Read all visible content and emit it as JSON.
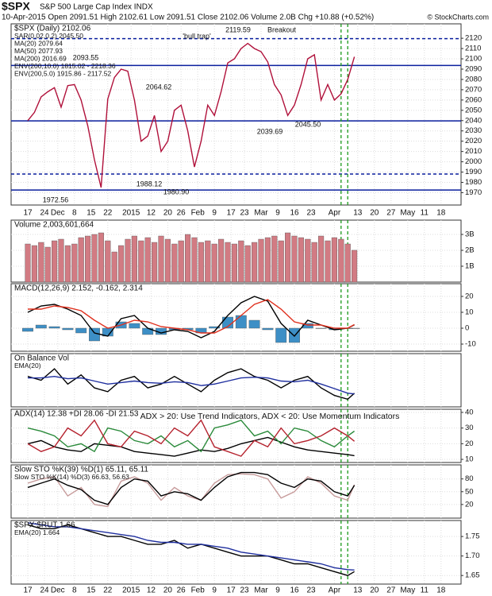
{
  "chart_data": {
    "type": "multi-panel",
    "title": "$SPX",
    "subtitle": "S&P 500 Large Cap Index INDX",
    "quote": "10-Apr-2015   Open 2091.51  High 2102.61  Low 2091.51  Close 2102.06  Volume 2.0B  Chg +10.88 (+0.52%)",
    "credit": "© StockCharts.com",
    "xlim": [
      -5,
      130
    ],
    "xticks": [
      {
        "value": 0,
        "label": "17"
      },
      {
        "value": 5,
        "label": "24"
      },
      {
        "value": 9,
        "label": "Dec"
      },
      {
        "value": 14,
        "label": "8"
      },
      {
        "value": 19,
        "label": "15"
      },
      {
        "value": 24,
        "label": "22"
      },
      {
        "value": 31,
        "label": "2015"
      },
      {
        "value": 37,
        "label": "12"
      },
      {
        "value": 42,
        "label": "20"
      },
      {
        "value": 46,
        "label": "26"
      },
      {
        "value": 51,
        "label": "Feb"
      },
      {
        "value": 56,
        "label": "9"
      },
      {
        "value": 61,
        "label": "17"
      },
      {
        "value": 65,
        "label": "23"
      },
      {
        "value": 70,
        "label": "Mar"
      },
      {
        "value": 75,
        "label": "9"
      },
      {
        "value": 80,
        "label": "16"
      },
      {
        "value": 85,
        "label": "23"
      },
      {
        "value": 92,
        "label": "Apr"
      },
      {
        "value": 99,
        "label": "13"
      },
      {
        "value": 104,
        "label": "20"
      },
      {
        "value": 109,
        "label": "27"
      },
      {
        "value": 114,
        "label": "May"
      },
      {
        "value": 119,
        "label": "11"
      },
      {
        "value": 124,
        "label": "18"
      }
    ],
    "signal_x": [
      94,
      96
    ],
    "signal_color": "#1a9a1a",
    "panels": [
      {
        "type": "line",
        "ylim": [
          1958,
          2134
        ],
        "yticks": [
          1970,
          1980,
          1990,
          2000,
          2010,
          2020,
          2030,
          2040,
          2050,
          2060,
          2070,
          2080,
          2090,
          2100,
          2110,
          2120
        ],
        "labels": [
          "$SPX (Daily) 2102.06",
          "SAR(0.02,0.2) 2045.50",
          "MA(20) 2079.64",
          "MA(50) 2077.93",
          "MA(200) 2016.69",
          "ENV(200,10.0) 1815.02 - 2218.36",
          "ENV(200,5.0) 1915.86 - 2117.52"
        ],
        "annotations": [
          "2119.59",
          "'bull trap'",
          "2093.55",
          "2064.62",
          "1972.56",
          "1988.12",
          "1980.90",
          "2039.69",
          "2045.50",
          "Breakout"
        ],
        "levels": [
          {
            "value": 2119.59,
            "dashed": true
          },
          {
            "value": 2093.55,
            "dashed": false
          },
          {
            "value": 2039.69,
            "dashed": false
          },
          {
            "value": 1972.56,
            "dashed": false
          },
          {
            "value": 1988.12,
            "dashed": true
          }
        ],
        "x": [
          0,
          2,
          4,
          6,
          8,
          10,
          12,
          14,
          16,
          18,
          20,
          22,
          24,
          26,
          28,
          30,
          32,
          34,
          36,
          38,
          40,
          42,
          44,
          46,
          48,
          50,
          52,
          54,
          56,
          58,
          60,
          62,
          64,
          66,
          68,
          70,
          72,
          74,
          76,
          78,
          80,
          82,
          84,
          86,
          88,
          90,
          92,
          94,
          96,
          98
        ],
        "series": [
          {
            "color": "#b0103a",
            "values": [
              2040,
              2048,
              2063,
              2068,
              2072,
              2053,
              2074,
              2075,
              2060,
              2035,
              2002,
              1975,
              2061,
              2082,
              2090,
              2088,
              2060,
              2020,
              2025,
              2045,
              2010,
              2020,
              2050,
              2055,
              2030,
              1995,
              2020,
              2055,
              2045,
              2068,
              2096,
              2100,
              2110,
              2115,
              2110,
              2107,
              2097,
              2075,
              2065,
              2045,
              2055,
              2075,
              2100,
              2104,
              2060,
              2075,
              2060,
              2066,
              2080,
              2102.06
            ]
          }
        ]
      },
      {
        "type": "bar",
        "ylim": [
          0,
          3.9
        ],
        "yticks": [
          {
            "value": 1,
            "label": "1B"
          },
          {
            "value": 2,
            "label": "2B"
          },
          {
            "value": 3,
            "label": "3B"
          }
        ],
        "labels": [
          "Volume 2,003,601,664"
        ],
        "x": [
          0,
          2,
          4,
          6,
          8,
          10,
          12,
          14,
          16,
          18,
          20,
          22,
          24,
          26,
          28,
          30,
          32,
          34,
          36,
          38,
          40,
          42,
          44,
          46,
          48,
          50,
          52,
          54,
          56,
          58,
          60,
          62,
          64,
          66,
          68,
          70,
          72,
          74,
          76,
          78,
          80,
          82,
          84,
          86,
          88,
          90,
          92,
          94,
          96,
          98
        ],
        "series": [
          {
            "color": "#d27b83",
            "style": "bar",
            "values": [
              2.4,
              2.3,
              2.5,
              2.2,
              2.6,
              2.7,
              2.3,
              2.4,
              2.8,
              2.9,
              3.0,
              3.1,
              2.6,
              1.9,
              2.3,
              2.7,
              2.9,
              2.6,
              2.8,
              2.5,
              2.9,
              2.7,
              2.4,
              2.6,
              3.0,
              2.8,
              2.5,
              2.6,
              2.4,
              2.7,
              2.5,
              2.4,
              2.6,
              2.3,
              2.5,
              2.7,
              2.8,
              2.9,
              2.6,
              3.1,
              2.9,
              2.8,
              2.7,
              2.5,
              2.9,
              2.6,
              2.8,
              2.7,
              2.4,
              2.0036
            ]
          }
        ]
      },
      {
        "type": "line",
        "ylim": [
          -14.5,
          28
        ],
        "yticks": [
          -10,
          0,
          10,
          20
        ],
        "labels": [
          "MACD(12,26,9) 2.152, -0.162, 2.314"
        ],
        "x": [
          0,
          4,
          8,
          12,
          16,
          20,
          24,
          28,
          32,
          36,
          40,
          44,
          48,
          52,
          56,
          60,
          64,
          68,
          72,
          76,
          80,
          84,
          88,
          92,
          96,
          98
        ],
        "series": [
          {
            "color": "#3d8fc6",
            "style": "bar",
            "values": [
              -2,
              2,
              1,
              -1,
              -3,
              -8,
              -5,
              4,
              3,
              -4,
              -4,
              -1,
              -1,
              -3,
              1,
              7,
              8,
              5,
              -1,
              -9,
              -9,
              3,
              0,
              -1,
              0,
              -0.162
            ]
          },
          {
            "color": "#000000",
            "values": [
              10,
              14,
              15,
              12,
              8,
              -3,
              -5,
              6,
              8,
              0,
              -3,
              -1,
              -2,
              -6,
              -2,
              8,
              16,
              20,
              17,
              3,
              -5,
              5,
              2,
              -1,
              0,
              2.152
            ]
          },
          {
            "color": "#e0301e",
            "values": [
              12,
              12,
              14,
              13,
              11,
              5,
              0,
              2,
              5,
              4,
              1,
              0,
              -1,
              -3,
              -3,
              1,
              8,
              15,
              18,
              12,
              4,
              2,
              2,
              0,
              0,
              2.314
            ]
          }
        ]
      },
      {
        "type": "line",
        "ylim": [
          20,
          90
        ],
        "yticks": [],
        "labels": [
          "On Balance Vol",
          "EMA(20)"
        ],
        "x": [
          0,
          4,
          8,
          12,
          16,
          20,
          24,
          28,
          32,
          36,
          40,
          44,
          48,
          52,
          56,
          60,
          64,
          68,
          72,
          76,
          80,
          84,
          88,
          92,
          96,
          98
        ],
        "series": [
          {
            "color": "#000000",
            "values": [
              60,
              55,
              70,
              50,
              62,
              45,
              40,
              55,
              60,
              45,
              50,
              60,
              50,
              40,
              55,
              65,
              70,
              60,
              55,
              45,
              55,
              60,
              45,
              35,
              30,
              38
            ]
          },
          {
            "color": "#1f2f9f",
            "values": [
              58,
              58,
              60,
              57,
              58,
              54,
              50,
              52,
              54,
              52,
              51,
              53,
              52,
              48,
              50,
              54,
              58,
              59,
              58,
              54,
              53,
              55,
              50,
              44,
              38,
              37
            ]
          }
        ]
      },
      {
        "type": "line",
        "ylim": [
          8,
          42
        ],
        "yticks": [
          10,
          20,
          30,
          40
        ],
        "labels": [
          "ADX(14) 12.38  +DI 28.06  -DI 21.53"
        ],
        "annotations": [
          "ADX > 20: Use Trend Indicators, ADX < 20: Use Momentum Indicators"
        ],
        "x": [
          0,
          4,
          8,
          12,
          16,
          20,
          24,
          28,
          32,
          36,
          40,
          44,
          48,
          52,
          56,
          60,
          64,
          68,
          72,
          76,
          80,
          84,
          88,
          92,
          96,
          98
        ],
        "series": [
          {
            "color": "#000000",
            "values": [
              20,
              22,
              18,
              16,
              15,
              20,
              19,
              18,
              15,
              14,
              13,
              12,
              14,
              16,
              15,
              17,
              20,
              22,
              24,
              21,
              18,
              16,
              15,
              14,
              13,
              12.38
            ]
          },
          {
            "color": "#2a8a3a",
            "values": [
              30,
              28,
              25,
              18,
              20,
              15,
              30,
              28,
              22,
              20,
              25,
              18,
              22,
              15,
              30,
              32,
              35,
              25,
              28,
              20,
              30,
              28,
              22,
              18,
              25,
              28.06
            ]
          },
          {
            "color": "#b5222e",
            "values": [
              20,
              15,
              18,
              30,
              25,
              35,
              20,
              18,
              28,
              25,
              20,
              30,
              25,
              35,
              18,
              15,
              12,
              22,
              18,
              30,
              20,
              22,
              25,
              30,
              25,
              21.53
            ]
          }
        ]
      },
      {
        "type": "line",
        "ylim": [
          -12,
          113
        ],
        "yticks": [
          20,
          50,
          80
        ],
        "labels": [
          "Slow STO %K(39) %D(1) 65.11, 65.11",
          "Slow STO %K(14) %D(3) 66.63, 56.63"
        ],
        "x": [
          0,
          4,
          8,
          12,
          16,
          20,
          24,
          28,
          32,
          36,
          40,
          44,
          48,
          52,
          56,
          60,
          64,
          68,
          72,
          76,
          80,
          84,
          88,
          92,
          96,
          98
        ],
        "series": [
          {
            "color": "#c79b9b",
            "values": [
              70,
              80,
              85,
              40,
              60,
              20,
              15,
              75,
              85,
              70,
              30,
              60,
              40,
              30,
              70,
              90,
              92,
              90,
              80,
              35,
              50,
              85,
              70,
              40,
              30,
              66.63
            ]
          },
          {
            "color": "#000000",
            "values": [
              60,
              70,
              80,
              65,
              55,
              30,
              20,
              60,
              80,
              75,
              40,
              50,
              45,
              30,
              60,
              85,
              95,
              95,
              90,
              70,
              60,
              80,
              75,
              50,
              40,
              65.11
            ]
          }
        ]
      },
      {
        "type": "line",
        "ylim": [
          1.628,
          1.791
        ],
        "yticks": [
          1.65,
          {
            "value": 1.7,
            "label": "1.70"
          },
          1.75
        ],
        "labels": [
          "$SPX:$RUT 1.66",
          "EMA(20) 1.664"
        ],
        "x": [
          0,
          4,
          8,
          12,
          16,
          20,
          24,
          28,
          32,
          36,
          40,
          44,
          48,
          52,
          56,
          60,
          64,
          68,
          72,
          76,
          80,
          84,
          88,
          92,
          96,
          98
        ],
        "series": [
          {
            "color": "#000000",
            "values": [
              1.78,
              1.77,
              1.77,
              1.78,
              1.77,
              1.76,
              1.75,
              1.75,
              1.74,
              1.73,
              1.73,
              1.74,
              1.72,
              1.73,
              1.72,
              1.71,
              1.7,
              1.7,
              1.7,
              1.69,
              1.68,
              1.68,
              1.67,
              1.66,
              1.65,
              1.66
            ]
          },
          {
            "color": "#1f2f9f",
            "values": [
              1.785,
              1.78,
              1.775,
              1.775,
              1.77,
              1.765,
              1.76,
              1.755,
              1.75,
              1.74,
              1.735,
              1.735,
              1.73,
              1.73,
              1.725,
              1.72,
              1.71,
              1.705,
              1.7,
              1.695,
              1.69,
              1.685,
              1.68,
              1.67,
              1.665,
              1.664
            ]
          }
        ]
      }
    ]
  }
}
